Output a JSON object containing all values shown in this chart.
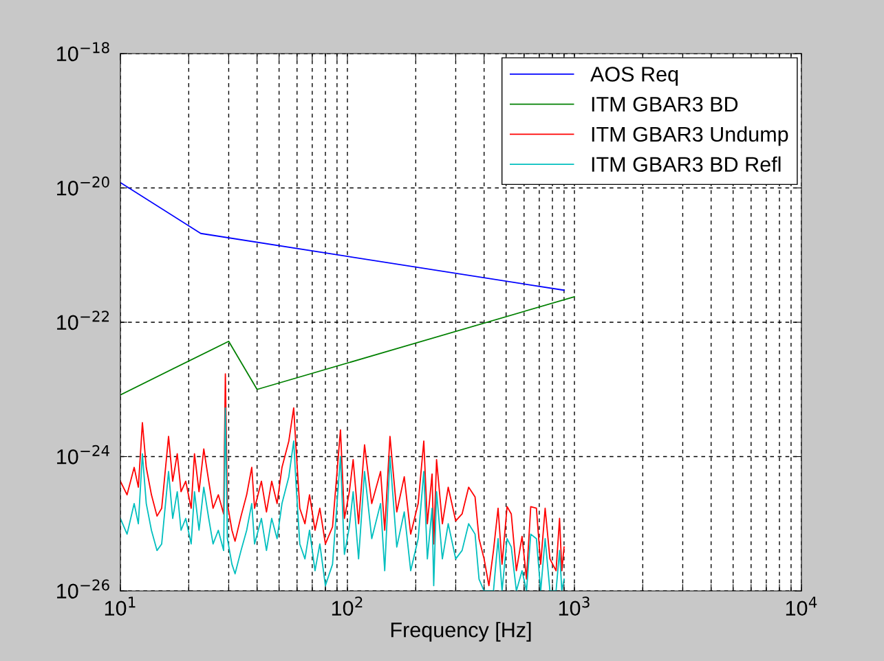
{
  "chart_data": {
    "type": "line",
    "xlabel": "Frequency [Hz]",
    "log": "xy",
    "grid": true,
    "legend": "top right",
    "line_style": "solid",
    "marker": "none",
    "xlim": [
      10,
      10000
    ],
    "ylim": [
      1e-26,
      1e-18
    ],
    "xticks": [
      {
        "value": 10,
        "label": "10$^{1}$"
      },
      {
        "value": 20,
        "label": null
      },
      {
        "value": 30,
        "label": null
      },
      {
        "value": 40,
        "label": null
      },
      {
        "value": 50,
        "label": null
      },
      {
        "value": 60,
        "label": null
      },
      {
        "value": 70,
        "label": null
      },
      {
        "value": 80,
        "label": null
      },
      {
        "value": 90,
        "label": null
      },
      {
        "value": 100,
        "label": "10$^{2}$"
      },
      {
        "value": 200,
        "label": null
      },
      {
        "value": 300,
        "label": null
      },
      {
        "value": 400,
        "label": null
      },
      {
        "value": 500,
        "label": null
      },
      {
        "value": 600,
        "label": null
      },
      {
        "value": 700,
        "label": null
      },
      {
        "value": 800,
        "label": null
      },
      {
        "value": 900,
        "label": null
      },
      {
        "value": 1000,
        "label": "10$^{3}$"
      },
      {
        "value": 2000,
        "label": null
      },
      {
        "value": 3000,
        "label": null
      },
      {
        "value": 4000,
        "label": null
      },
      {
        "value": 5000,
        "label": null
      },
      {
        "value": 6000,
        "label": null
      },
      {
        "value": 7000,
        "label": null
      },
      {
        "value": 8000,
        "label": null
      },
      {
        "value": 9000,
        "label": null
      },
      {
        "value": 10000,
        "label": "10$^{4}$"
      }
    ],
    "yticks": [
      {
        "value": 1e-26,
        "label": "10$^{−26}$"
      },
      {
        "value": 1e-24,
        "label": "10$^{−24}$"
      },
      {
        "value": 1e-22,
        "label": "10$^{−22}$"
      },
      {
        "value": 1e-20,
        "label": "10$^{−20}$"
      },
      {
        "value": 1e-18,
        "label": "10$^{−18}$"
      }
    ],
    "x": [
      10,
      10.7,
      11.5,
      12.0,
      12.5,
      13.0,
      13.7,
      14.5,
      15.2,
      16.3,
      17.0,
      17.8,
      18.5,
      19.4,
      20.5,
      21.2,
      22.2,
      23.3,
      24.5,
      25.6,
      27.0,
      28.5,
      29.0,
      29.6,
      31.0,
      32.0,
      34.0,
      36.0,
      37.9,
      39.0,
      41.8,
      44.0,
      46.4,
      49.0,
      51.5,
      55.2,
      58.0,
      59.5,
      61.7,
      65.0,
      68.1,
      72.0,
      75.6,
      80.0,
      86.0,
      93.2,
      97.0,
      102,
      106,
      112,
      119,
      128,
      140,
      146,
      154,
      165,
      178,
      190,
      205,
      217,
      225,
      236,
      240,
      247,
      262,
      278,
      300,
      320,
      342,
      365,
      380,
      400,
      420,
      440,
      461,
      480,
      505,
      527,
      555,
      588,
      615,
      642,
      680,
      710,
      743,
      780,
      830,
      860,
      880,
      900
    ],
    "series": [
      {
        "name": "AOS Req",
        "color": "#0000ff",
        "x": [
          10,
          22.6,
          900
        ],
        "values": [
          1.2e-20,
          2.1e-21,
          3e-22
        ]
      },
      {
        "name": "ITM GBAR3 BD",
        "color": "#008000",
        "x": [
          10,
          30,
          40,
          1000
        ],
        "values": [
          8.3e-24,
          5.2e-23,
          1e-23,
          2.4e-22
        ]
      },
      {
        "name": "ITM GBAR3 Undump",
        "color": "#ff0000",
        "values": [
          4.3e-25,
          2.7e-25,
          6.9e-25,
          3.5e-25,
          3.2e-24,
          6.9e-25,
          2.7e-25,
          1.3e-25,
          1.7e-25,
          2e-24,
          4.3e-25,
          1.1e-24,
          3e-25,
          4.3e-25,
          1.7e-25,
          1.1e-24,
          3e-25,
          1.3e-24,
          4.3e-25,
          1.7e-25,
          2.7e-25,
          1.4e-25,
          1.7e-23,
          2e-25,
          8e-26,
          5.5e-26,
          1.3e-25,
          2.7e-25,
          6.9e-25,
          1.7e-25,
          4.3e-25,
          1.5e-25,
          4.3e-25,
          2e-25,
          6.9e-25,
          1.7e-24,
          5.3e-24,
          1.2e-24,
          1.7e-25,
          1e-25,
          2.7e-25,
          8e-26,
          1.7e-25,
          5e-26,
          9e-26,
          2.5e-24,
          1.2e-25,
          3e-25,
          9e-25,
          1e-25,
          1.5e-24,
          2e-25,
          6e-25,
          8e-26,
          2e-24,
          1.5e-25,
          5e-25,
          7e-26,
          2e-25,
          1.7e-24,
          1e-25,
          5.5e-25,
          5e-26,
          9e-25,
          1e-25,
          3.5e-25,
          1.1e-25,
          1.4e-25,
          3.5e-25,
          2.5e-25,
          6e-26,
          3e-26,
          1.2e-26,
          4e-26,
          1.7e-25,
          2.5e-26,
          1.8e-25,
          1.4e-25,
          2e-26,
          6.5e-26,
          1.5e-26,
          1.8e-25,
          1.7e-25,
          2.5e-26,
          1.7e-25,
          3e-26,
          2e-26,
          1.2e-25,
          2e-26,
          4.5e-26
        ]
      },
      {
        "name": "ITM GBAR3 BD Refl",
        "color": "#00bfbf",
        "values": [
          1.2e-25,
          7e-26,
          2e-25,
          1e-25,
          1.1e-24,
          2e-25,
          8e-26,
          4e-26,
          5e-26,
          6e-25,
          1.2e-25,
          3e-25,
          8e-26,
          1.2e-25,
          5e-26,
          3e-25,
          8e-26,
          3.5e-25,
          1.2e-25,
          5e-26,
          8e-26,
          4e-26,
          5.3e-24,
          6e-26,
          2.5e-26,
          1.8e-26,
          4e-26,
          8e-26,
          2e-25,
          5e-26,
          1.2e-25,
          4e-26,
          1.2e-25,
          6e-26,
          2e-25,
          5e-25,
          1.7e-24,
          3.5e-25,
          5e-26,
          3e-26,
          8e-26,
          2e-26,
          5e-26,
          1.2e-26,
          2.5e-26,
          1e-24,
          3.5e-26,
          9e-26,
          3e-25,
          3e-26,
          6e-25,
          6e-26,
          2e-25,
          2e-26,
          1e-24,
          4.5e-26,
          1.5e-25,
          2e-26,
          6e-26,
          6e-25,
          3e-26,
          1.7e-25,
          1.2e-26,
          3e-25,
          3e-26,
          1e-25,
          3e-26,
          4e-26,
          1e-25,
          7e-26,
          1.5e-26,
          1e-26,
          1e-26,
          1e-26,
          6e-26,
          1e-26,
          6e-26,
          4.5e-26,
          1e-26,
          2e-26,
          1e-26,
          7e-26,
          6e-26,
          1e-26,
          6e-26,
          1e-26,
          1e-26,
          4e-26,
          1e-26,
          1.5e-26
        ]
      }
    ]
  }
}
